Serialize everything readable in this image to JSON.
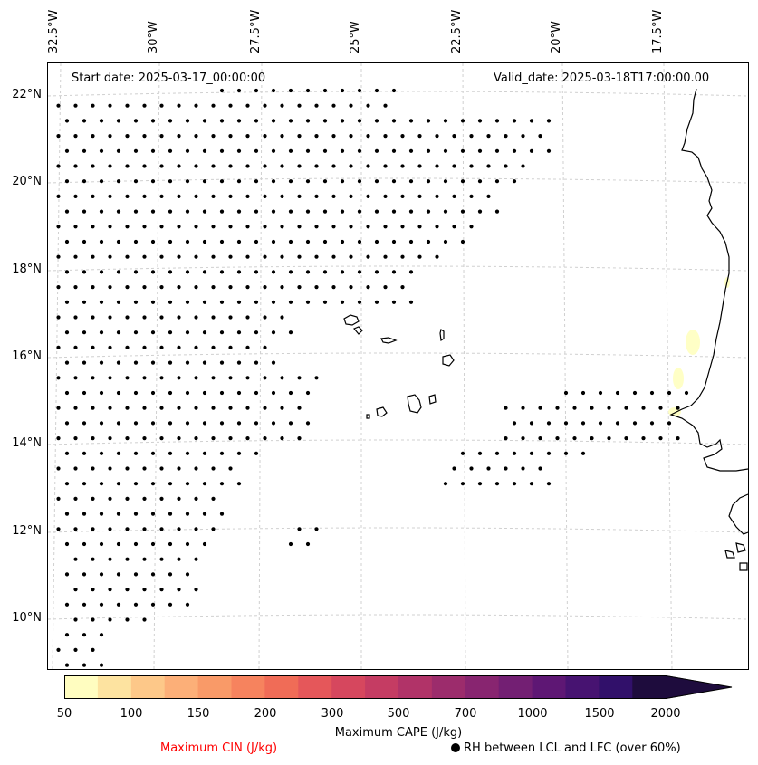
{
  "map": {
    "start_date": "Start date: 2025-03-17_00:00:00",
    "valid_date": "Valid_date: 2025-03-18T17:00:00.00",
    "lon_labels": [
      "32.5°W",
      "30°W",
      "27.5°W",
      "25°W",
      "22.5°W",
      "20°W",
      "17.5°W"
    ],
    "lat_labels": [
      "22°N",
      "20°N",
      "18°N",
      "16°N",
      "14°N",
      "12°N",
      "10°N"
    ],
    "lon_range": [
      -32.6,
      -16.2
    ],
    "lat_range": [
      8.9,
      22.8
    ],
    "coastline_color": "#000000",
    "gridline_color": "#d0d0d0",
    "cape_highlight_color": "#ffffc0"
  },
  "colorbar": {
    "title": "Maximum CAPE (J/kg)",
    "tick_labels": [
      "50",
      "100",
      "150",
      "200",
      "300",
      "500",
      "700",
      "1000",
      "1500",
      "2000"
    ],
    "colors": [
      "#fffdc0",
      "#fde3a0",
      "#fdc889",
      "#fcaf78",
      "#f99a68",
      "#f6835e",
      "#f06c57",
      "#e5575a",
      "#d6475e",
      "#c53c63",
      "#b13368",
      "#9c2c6c",
      "#882570",
      "#731f73",
      "#5e1774",
      "#471371",
      "#31106a",
      "#1e0c3d"
    ],
    "extend": "max"
  },
  "legend": {
    "cin_label": "Maximum CIN (J/kg)",
    "cin_color": "#ff0000",
    "rh_label": "RH between LCL and LFC (over 60%)"
  }
}
